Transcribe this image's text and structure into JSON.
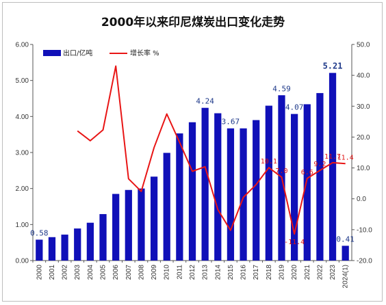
{
  "chart_data": {
    "type": "bar",
    "title": "2000年以来印尼煤炭出口变化走势",
    "categories": [
      "2000",
      "2001",
      "2002",
      "2003",
      "2004",
      "2005",
      "2006",
      "2007",
      "2008",
      "2009",
      "2010",
      "2011",
      "2012",
      "2013",
      "2014",
      "2015",
      "2016",
      "2017",
      "2018",
      "2019",
      "2020",
      "2021",
      "2022",
      "2023",
      "2024(1)"
    ],
    "series": [
      {
        "name": "出口/亿吨",
        "kind": "bar",
        "axis": "left",
        "values": [
          0.58,
          0.65,
          0.72,
          0.89,
          1.05,
          1.29,
          1.85,
          1.96,
          2.0,
          2.33,
          2.99,
          3.53,
          3.84,
          4.24,
          4.09,
          3.67,
          3.67,
          3.9,
          4.3,
          4.59,
          4.07,
          4.34,
          4.65,
          5.21,
          0.41
        ]
      },
      {
        "name": "增长率 %",
        "kind": "line",
        "axis": "right",
        "values": [
          null,
          null,
          null,
          22.0,
          18.8,
          22.3,
          43.0,
          6.5,
          2.4,
          16.6,
          27.5,
          18.3,
          8.9,
          10.4,
          -3.5,
          -10.2,
          0.5,
          4.6,
          10.1,
          7.0,
          -11.4,
          6.6,
          9.2,
          11.7,
          11.4
        ]
      }
    ],
    "data_labels": {
      "bars": [
        {
          "category": "2000",
          "text": "0.58"
        },
        {
          "category": "2013",
          "text": "4.24"
        },
        {
          "category": "2015",
          "text": "3.67"
        },
        {
          "category": "2019",
          "text": "4.59"
        },
        {
          "category": "2020",
          "text": "4.07"
        },
        {
          "category": "2023",
          "text": "5.21"
        },
        {
          "category": "2024(1)",
          "text": "0.41"
        }
      ],
      "line": [
        {
          "category": "2018",
          "text": "10.1"
        },
        {
          "category": "2019",
          "text": "7.0"
        },
        {
          "category": "2020",
          "text": "-11.4"
        },
        {
          "category": "2021",
          "text": "6.6"
        },
        {
          "category": "2022",
          "text": "9.2"
        },
        {
          "category": "2023",
          "text": "11.7"
        },
        {
          "category": "2024(1)",
          "text": "11.4"
        }
      ]
    },
    "y_left": {
      "min": 0,
      "max": 6,
      "ticks": [
        "0.00",
        "1.00",
        "2.00",
        "3.00",
        "4.00",
        "5.00",
        "6.00"
      ]
    },
    "y_right": {
      "min": -20,
      "max": 50,
      "ticks": [
        "-20.0",
        "-10.0",
        "0.0",
        "10.0",
        "20.0",
        "30.0",
        "40.0",
        "50.0"
      ]
    },
    "grid": false,
    "legend_position": "top-left",
    "colors": {
      "bar": "#1010b8",
      "line": "#e81515",
      "bar_label": "#1f3a8a",
      "line_label": "#e01010"
    }
  }
}
